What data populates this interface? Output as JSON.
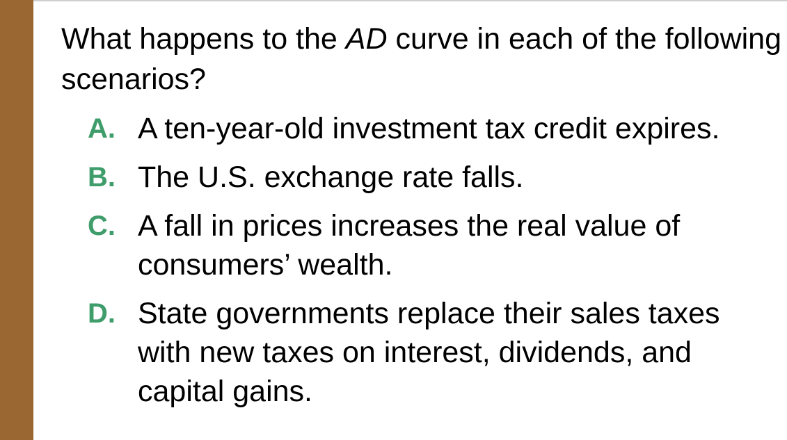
{
  "question": {
    "prefix": "What happens to the ",
    "emphasis": "AD",
    "suffix": " curve in each of the following scenarios?"
  },
  "options": [
    {
      "letter": "A.",
      "text": "A ten-year-old investment tax credit expires."
    },
    {
      "letter": "B.",
      "text": "The U.S. exchange rate falls."
    },
    {
      "letter": "C.",
      "text": "A fall in prices increases the real value of consumers’ wealth."
    },
    {
      "letter": "D.",
      "text": "State governments replace their sales taxes with new taxes on interest, dividends, and capital gains."
    }
  ],
  "colors": {
    "sidebar": "#9a6631",
    "option_letter": "#3e9d6a"
  }
}
